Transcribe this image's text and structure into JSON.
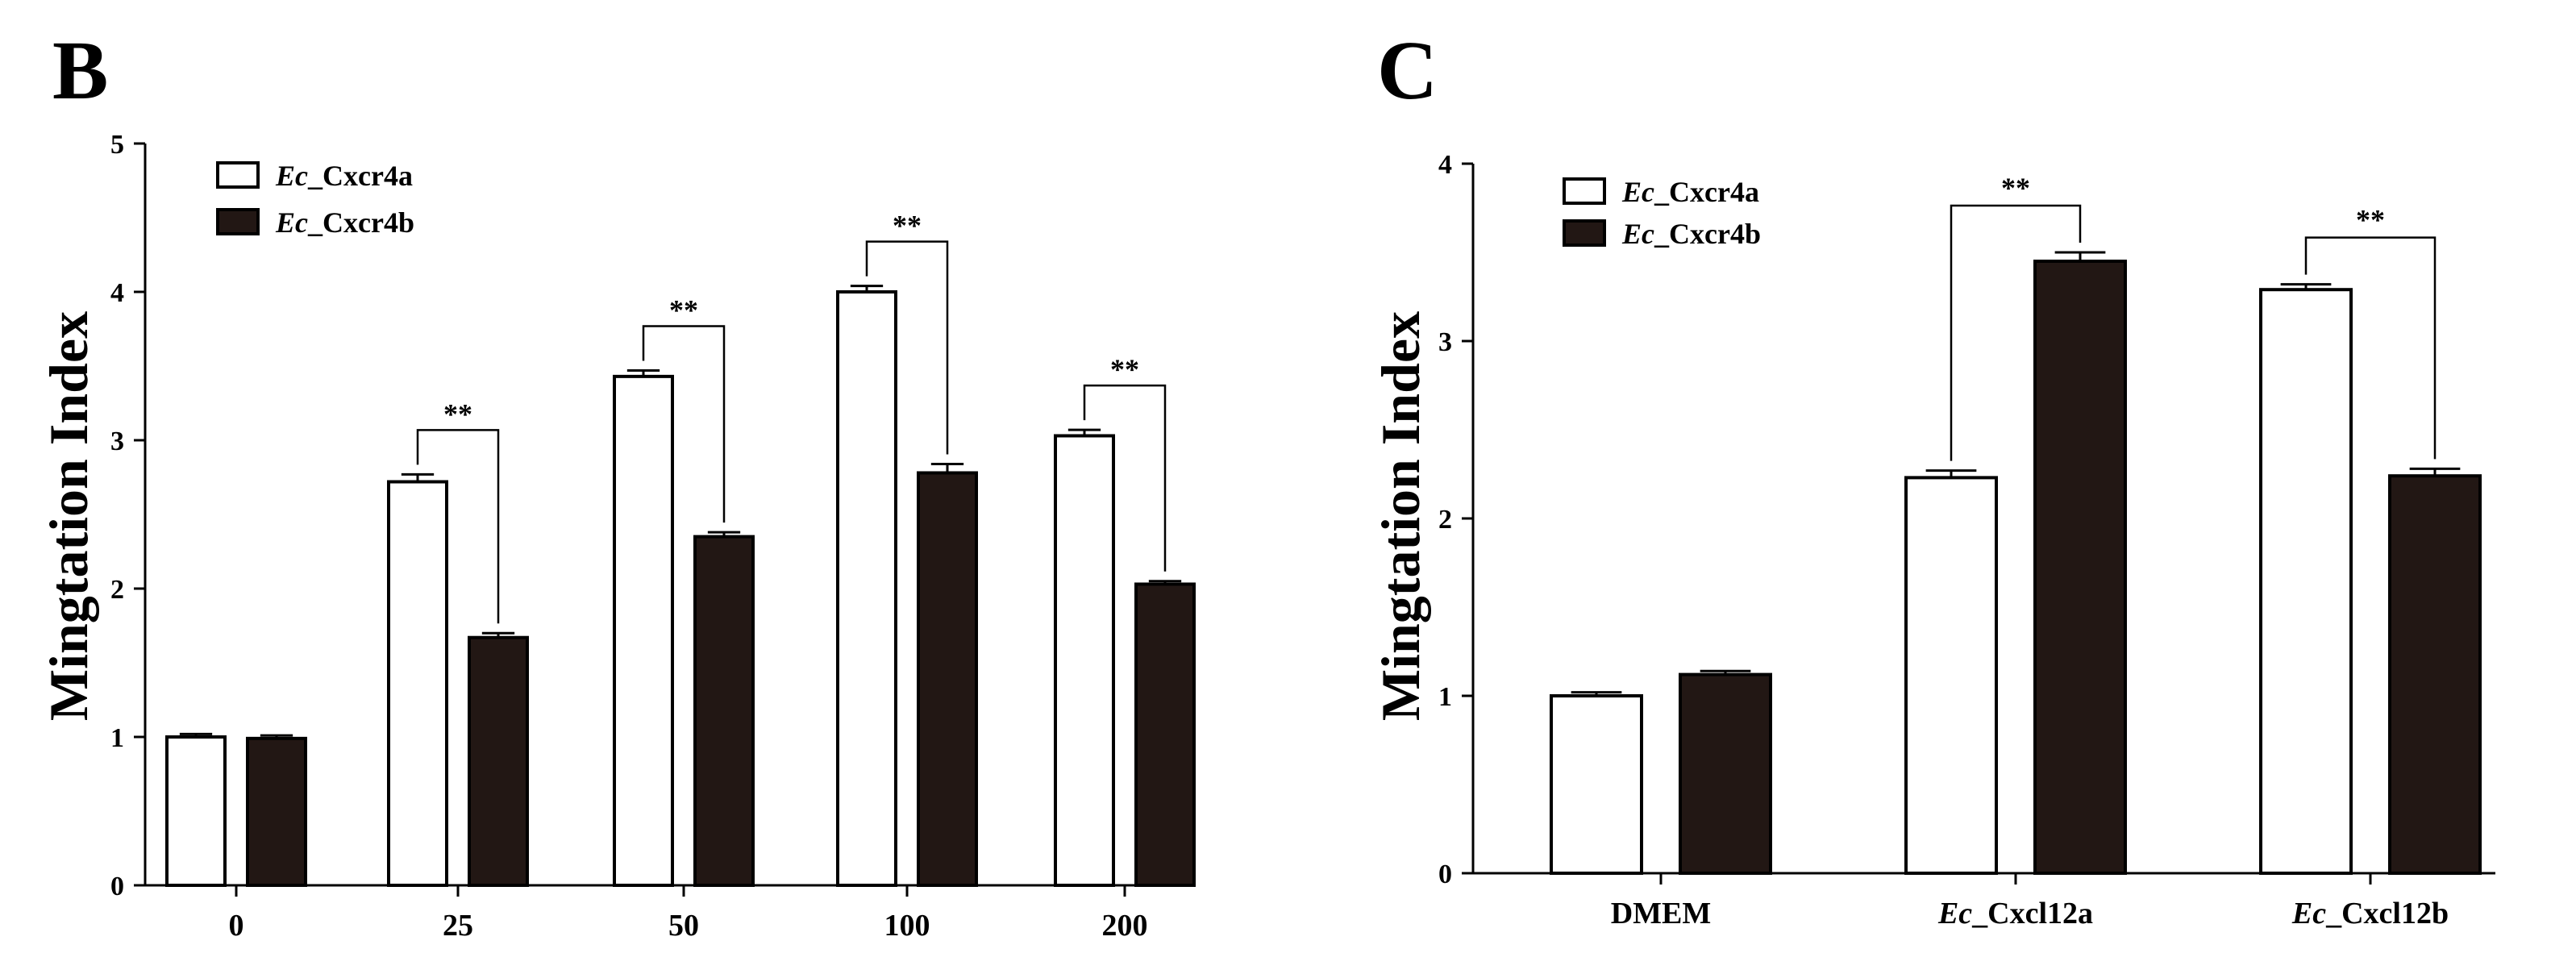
{
  "chart_data": [
    {
      "panel": "B",
      "type": "bar",
      "ylabel": "Mingtation Index",
      "xlabel": "",
      "ylim": [
        0,
        5
      ],
      "yticks": [
        "0",
        "1",
        "2",
        "3",
        "4",
        "5"
      ],
      "categories": [
        "0",
        "25",
        "50",
        "100",
        "200"
      ],
      "series": [
        {
          "name_italic": "Ec",
          "name_rest": "_Cxcr4a",
          "fill": "#ffffff",
          "values": [
            1.0,
            2.72,
            3.43,
            4.0,
            3.03
          ],
          "errors": [
            0.02,
            0.05,
            0.04,
            0.04,
            0.04
          ]
        },
        {
          "name_italic": "Ec",
          "name_rest": "_Cxcr4b",
          "fill": "#221714",
          "values": [
            0.99,
            1.67,
            2.35,
            2.78,
            2.03
          ],
          "errors": [
            0.02,
            0.03,
            0.03,
            0.06,
            0.02
          ]
        }
      ],
      "significance": [
        {
          "category_index": 1,
          "label": "**"
        },
        {
          "category_index": 2,
          "label": "**"
        },
        {
          "category_index": 3,
          "label": "**"
        },
        {
          "category_index": 4,
          "label": "**"
        }
      ],
      "legend_position": "top-left"
    },
    {
      "panel": "C",
      "type": "bar",
      "ylabel": "Mingtation Index",
      "xlabel": "",
      "ylim": [
        0,
        4
      ],
      "yticks": [
        "0",
        "1",
        "2",
        "3",
        "4"
      ],
      "categories": [
        {
          "italic": "",
          "rest": "DMEM"
        },
        {
          "italic": "Ec",
          "rest": "_Cxcl12a"
        },
        {
          "italic": "Ec",
          "rest": "_Cxcl12b"
        }
      ],
      "series": [
        {
          "name_italic": "Ec",
          "name_rest": "_Cxcr4a",
          "fill": "#ffffff",
          "values": [
            1.0,
            2.23,
            3.29
          ],
          "errors": [
            0.02,
            0.04,
            0.03
          ]
        },
        {
          "name_italic": "Ec",
          "name_rest": "_Cxcr4b",
          "fill": "#221714",
          "values": [
            1.12,
            3.45,
            2.24
          ],
          "errors": [
            0.02,
            0.05,
            0.04
          ]
        }
      ],
      "significance": [
        {
          "category_index": 1,
          "label": "**"
        },
        {
          "category_index": 2,
          "label": "**"
        }
      ],
      "legend_position": "top-left"
    }
  ]
}
